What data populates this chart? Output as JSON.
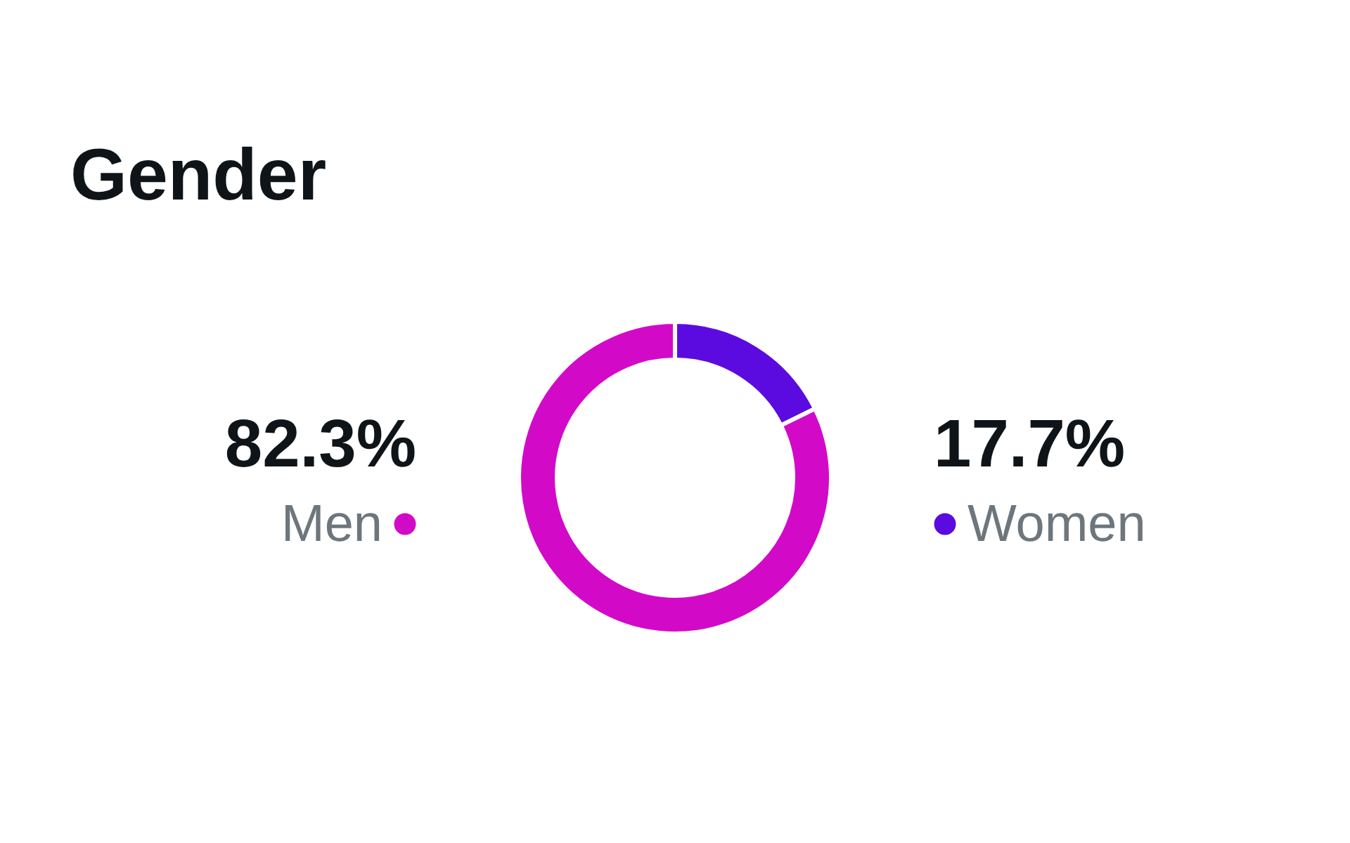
{
  "chart_data": {
    "type": "donut",
    "title": "Gender",
    "categories": [
      "Women",
      "Men"
    ],
    "values": [
      17.7,
      82.3
    ],
    "colors": [
      "#5b0be0",
      "#d20ac8"
    ],
    "value_labels": [
      "17.7%",
      "82.3%"
    ]
  }
}
